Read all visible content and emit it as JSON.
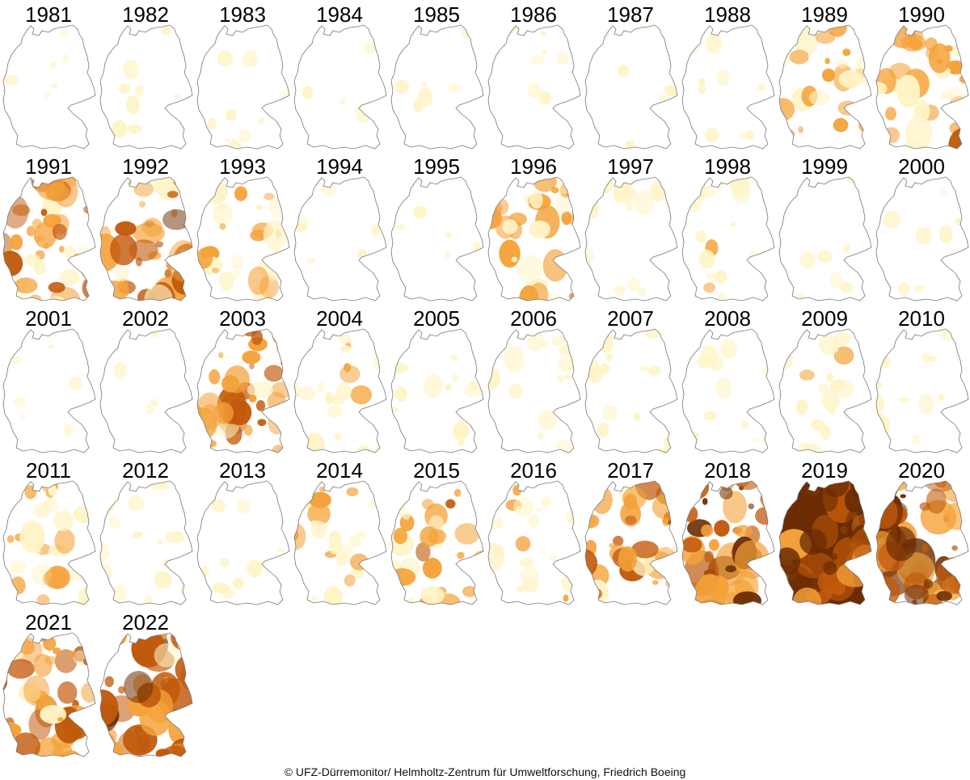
{
  "title": "",
  "credit": "© UFZ-Dürremonitor/ Helmholtz-Zentrum für Umweltforschung, Friedrich Boeing",
  "colors": {
    "outline": "#777777",
    "light": "#fff4c6",
    "mid": "#f4a23a",
    "dark": "#c15a0c",
    "extreme": "#6b2c03"
  },
  "years": [
    {
      "year": "1981",
      "intensity": 0.02
    },
    {
      "year": "1982",
      "intensity": 0.08
    },
    {
      "year": "1983",
      "intensity": 0.12
    },
    {
      "year": "1984",
      "intensity": 0.04
    },
    {
      "year": "1985",
      "intensity": 0.03
    },
    {
      "year": "1986",
      "intensity": 0.02
    },
    {
      "year": "1987",
      "intensity": 0.02
    },
    {
      "year": "1988",
      "intensity": 0.08
    },
    {
      "year": "1989",
      "intensity": 0.38
    },
    {
      "year": "1990",
      "intensity": 0.45
    },
    {
      "year": "1991",
      "intensity": 0.55
    },
    {
      "year": "1992",
      "intensity": 0.62
    },
    {
      "year": "1993",
      "intensity": 0.35
    },
    {
      "year": "1994",
      "intensity": 0.04
    },
    {
      "year": "1995",
      "intensity": 0.02
    },
    {
      "year": "1996",
      "intensity": 0.45
    },
    {
      "year": "1997",
      "intensity": 0.2
    },
    {
      "year": "1998",
      "intensity": 0.25
    },
    {
      "year": "1999",
      "intensity": 0.04
    },
    {
      "year": "2000",
      "intensity": 0.08
    },
    {
      "year": "2001",
      "intensity": 0.05
    },
    {
      "year": "2002",
      "intensity": 0.02
    },
    {
      "year": "2003",
      "intensity": 0.55
    },
    {
      "year": "2004",
      "intensity": 0.3
    },
    {
      "year": "2005",
      "intensity": 0.15
    },
    {
      "year": "2006",
      "intensity": 0.22
    },
    {
      "year": "2007",
      "intensity": 0.18
    },
    {
      "year": "2008",
      "intensity": 0.12
    },
    {
      "year": "2009",
      "intensity": 0.25
    },
    {
      "year": "2010",
      "intensity": 0.15
    },
    {
      "year": "2011",
      "intensity": 0.4
    },
    {
      "year": "2012",
      "intensity": 0.2
    },
    {
      "year": "2013",
      "intensity": 0.08
    },
    {
      "year": "2014",
      "intensity": 0.35
    },
    {
      "year": "2015",
      "intensity": 0.45
    },
    {
      "year": "2016",
      "intensity": 0.3
    },
    {
      "year": "2017",
      "intensity": 0.55
    },
    {
      "year": "2018",
      "intensity": 0.72
    },
    {
      "year": "2019",
      "intensity": 0.95
    },
    {
      "year": "2020",
      "intensity": 0.85
    },
    {
      "year": "2021",
      "intensity": 0.55
    },
    {
      "year": "2022",
      "intensity": 0.7
    }
  ]
}
